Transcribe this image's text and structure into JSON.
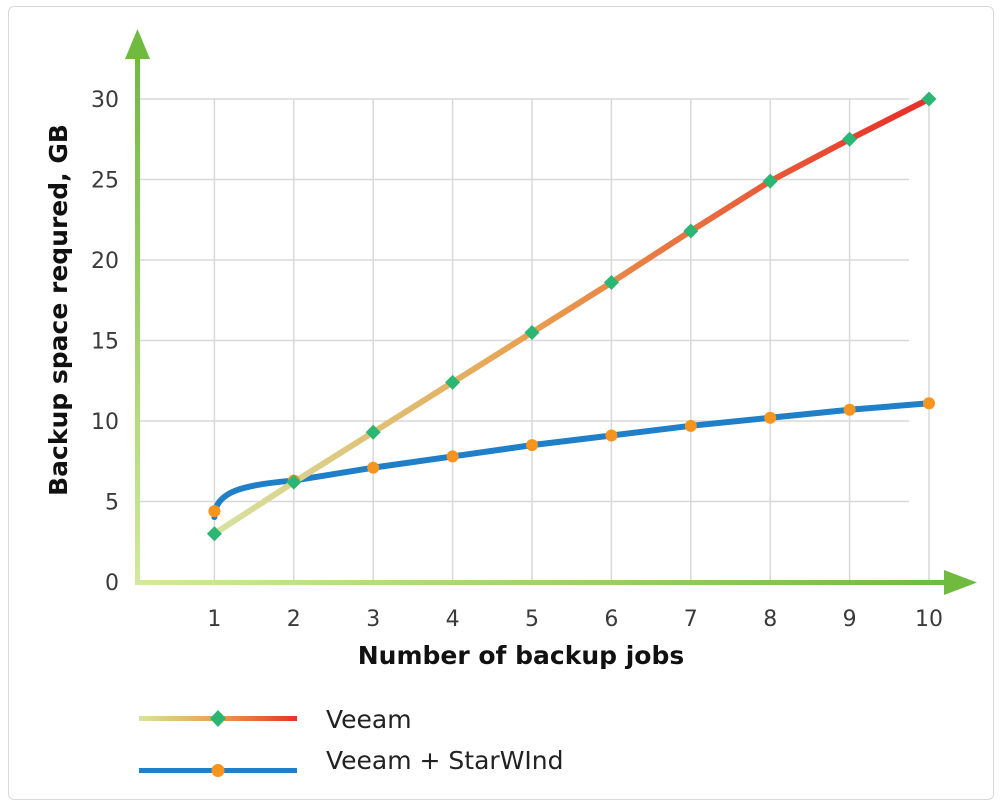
{
  "chart_data": {
    "type": "line",
    "title": "",
    "xlabel": "Number of backup jobs",
    "ylabel": "Backup space requred, GB",
    "x": [
      1,
      2,
      3,
      4,
      5,
      6,
      7,
      8,
      9,
      10
    ],
    "xlim": [
      0,
      10
    ],
    "ylim": [
      0,
      30
    ],
    "xticks": [
      "1",
      "2",
      "3",
      "4",
      "5",
      "6",
      "7",
      "8",
      "9",
      "10"
    ],
    "yticks": [
      "0",
      "5",
      "10",
      "15",
      "20",
      "25",
      "30"
    ],
    "grid": true,
    "legend_position": "bottom-left",
    "series": [
      {
        "name": "Veeam",
        "values": [
          3,
          6.2,
          9.3,
          12.4,
          15.5,
          18.6,
          21.8,
          24.9,
          27.5,
          30
        ],
        "marker": "diamond",
        "marker_color": "#2bb673",
        "line_gradient": [
          "#d6e3a0",
          "#e8a050",
          "#e8322a"
        ]
      },
      {
        "name": "Veeam + StarWInd",
        "values": [
          4.4,
          6.3,
          7.1,
          7.8,
          8.5,
          9.1,
          9.7,
          10.2,
          10.7,
          11.1
        ],
        "marker": "circle",
        "marker_color": "#f7941d",
        "line_color": "#1f7fc8"
      }
    ],
    "axis_color": "#7ac143"
  }
}
